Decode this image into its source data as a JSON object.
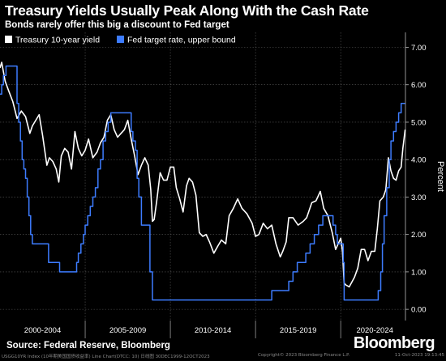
{
  "header": {
    "title": "Treasury Yields Usually Peak Along With the Cash Rate",
    "subtitle": "Bonds rarely offer this big a discount to Fed target"
  },
  "footer": {
    "source": "Source: Federal Reserve, Bloomberg",
    "brand": "Bloomberg",
    "left_note": "USGG10YR Index (10年期美国国债收益率) Line Chart(DTCC: 10) 日线图 30DEC1999-12OCT2023",
    "mid_note": "Copyright© 2023 Bloomberg Finance L.P.",
    "right_note": "11-Oct-2023 19:13:45"
  },
  "chart_data": {
    "type": "line",
    "title": "Treasury Yields Usually Peak Along With the Cash Rate",
    "subtitle": "Bonds rarely offer this big a discount to Fed target",
    "ylabel": "Percent",
    "ylim": [
      -0.3,
      7.4
    ],
    "yticks": [
      "0.00",
      "1.00",
      "2.00",
      "3.00",
      "4.00",
      "5.00",
      "6.00",
      "7.00"
    ],
    "xlim": [
      2000.0,
      2023.8
    ],
    "x_groups": [
      "2000-2004",
      "2005-2009",
      "2010-2014",
      "2015-2019",
      "2020-2024"
    ],
    "grid": true,
    "legend": {
      "position": "top-left"
    },
    "series": [
      {
        "name": "Treasury 10-year yield",
        "color": "#ffffff",
        "x": [
          2000.0,
          2000.1,
          2000.3,
          2000.5,
          2000.75,
          2001.0,
          2001.25,
          2001.5,
          2001.75,
          2001.9,
          2002.1,
          2002.3,
          2002.5,
          2002.75,
          2002.9,
          2003.1,
          2003.3,
          2003.45,
          2003.6,
          2003.8,
          2004.0,
          2004.2,
          2004.4,
          2004.6,
          2004.8,
          2005.0,
          2005.2,
          2005.45,
          2005.7,
          2005.9,
          2006.1,
          2006.3,
          2006.5,
          2006.7,
          2006.9,
          2007.1,
          2007.3,
          2007.5,
          2007.7,
          2007.9,
          2008.1,
          2008.3,
          2008.5,
          2008.7,
          2008.85,
          2008.95,
          2009.05,
          2009.2,
          2009.4,
          2009.6,
          2009.8,
          2010.0,
          2010.2,
          2010.35,
          2010.55,
          2010.75,
          2010.95,
          2011.1,
          2011.3,
          2011.5,
          2011.7,
          2011.9,
          2012.1,
          2012.3,
          2012.55,
          2012.8,
          2013.0,
          2013.25,
          2013.45,
          2013.7,
          2013.95,
          2014.2,
          2014.5,
          2014.8,
          2015.0,
          2015.2,
          2015.45,
          2015.7,
          2015.95,
          2016.2,
          2016.45,
          2016.6,
          2016.8,
          2016.95,
          2017.2,
          2017.5,
          2017.8,
          2018.0,
          2018.3,
          2018.55,
          2018.8,
          2019.0,
          2019.25,
          2019.5,
          2019.7,
          2019.9,
          2020.0,
          2020.1,
          2020.2,
          2020.3,
          2020.5,
          2020.8,
          2021.0,
          2021.2,
          2021.4,
          2021.6,
          2021.8,
          2022.0,
          2022.15,
          2022.3,
          2022.5,
          2022.65,
          2022.8,
          2022.95,
          2023.1,
          2023.25,
          2023.4,
          2023.55,
          2023.65,
          2023.78
        ],
        "values": [
          6.45,
          6.6,
          6.1,
          5.85,
          5.55,
          5.1,
          5.3,
          5.15,
          4.7,
          4.9,
          5.05,
          5.2,
          4.65,
          3.85,
          4.05,
          3.95,
          3.75,
          3.4,
          4.1,
          4.3,
          4.2,
          3.75,
          4.75,
          4.3,
          4.1,
          4.25,
          4.55,
          4.05,
          4.2,
          4.45,
          4.6,
          5.05,
          5.2,
          4.8,
          4.6,
          4.7,
          4.8,
          5.05,
          4.55,
          4.1,
          3.6,
          3.85,
          4.05,
          3.85,
          3.2,
          2.35,
          2.4,
          2.9,
          3.65,
          3.45,
          3.45,
          3.8,
          3.8,
          3.25,
          2.95,
          2.6,
          3.3,
          3.5,
          3.4,
          3.05,
          2.05,
          1.95,
          2.0,
          1.8,
          1.5,
          1.7,
          1.85,
          1.75,
          2.5,
          2.7,
          2.95,
          2.7,
          2.55,
          2.3,
          1.95,
          2.0,
          2.3,
          2.15,
          2.25,
          1.75,
          1.4,
          1.55,
          1.8,
          2.45,
          2.45,
          2.25,
          2.35,
          2.45,
          2.85,
          2.9,
          3.15,
          2.7,
          2.5,
          2.05,
          1.6,
          1.8,
          1.9,
          1.55,
          0.7,
          0.65,
          0.6,
          0.85,
          1.1,
          1.6,
          1.6,
          1.3,
          1.55,
          1.55,
          2.15,
          2.9,
          3.0,
          3.2,
          4.05,
          3.7,
          3.5,
          3.45,
          3.7,
          3.8,
          4.3,
          4.8
        ]
      },
      {
        "name": "Fed target rate, upper bound",
        "color": "#3d7cff",
        "step": true,
        "x": [
          2000.0,
          2000.1,
          2000.2,
          2000.35,
          2001.0,
          2001.1,
          2001.2,
          2001.3,
          2001.4,
          2001.5,
          2001.6,
          2001.7,
          2001.8,
          2001.9,
          2002.0,
          2002.85,
          2003.5,
          2004.5,
          2004.6,
          2004.75,
          2004.9,
          2005.0,
          2005.15,
          2005.3,
          2005.45,
          2005.6,
          2005.75,
          2005.9,
          2006.05,
          2006.2,
          2006.35,
          2006.5,
          2007.7,
          2007.8,
          2007.95,
          2008.05,
          2008.15,
          2008.3,
          2008.8,
          2008.95,
          2015.95,
          2016.95,
          2017.2,
          2017.45,
          2017.95,
          2018.2,
          2018.45,
          2018.7,
          2018.95,
          2019.55,
          2019.7,
          2019.8,
          2020.15,
          2020.2,
          2022.2,
          2022.35,
          2022.45,
          2022.55,
          2022.7,
          2022.85,
          2022.95,
          2023.1,
          2023.25,
          2023.4,
          2023.55,
          2023.78
        ],
        "values": [
          5.75,
          6.0,
          6.25,
          6.5,
          5.5,
          5.0,
          4.5,
          4.0,
          3.75,
          3.5,
          3.0,
          2.5,
          2.0,
          1.75,
          1.75,
          1.25,
          1.0,
          1.25,
          1.5,
          1.75,
          2.0,
          2.25,
          2.5,
          2.75,
          3.0,
          3.25,
          3.75,
          4.0,
          4.5,
          4.75,
          5.0,
          5.25,
          4.75,
          4.5,
          4.25,
          3.5,
          3.0,
          2.25,
          1.0,
          0.25,
          0.5,
          0.75,
          1.0,
          1.25,
          1.5,
          1.75,
          2.0,
          2.25,
          2.5,
          2.25,
          2.0,
          1.75,
          1.25,
          0.25,
          0.5,
          1.0,
          1.75,
          2.5,
          3.25,
          4.0,
          4.5,
          4.75,
          5.0,
          5.25,
          5.5,
          5.5
        ]
      }
    ]
  }
}
